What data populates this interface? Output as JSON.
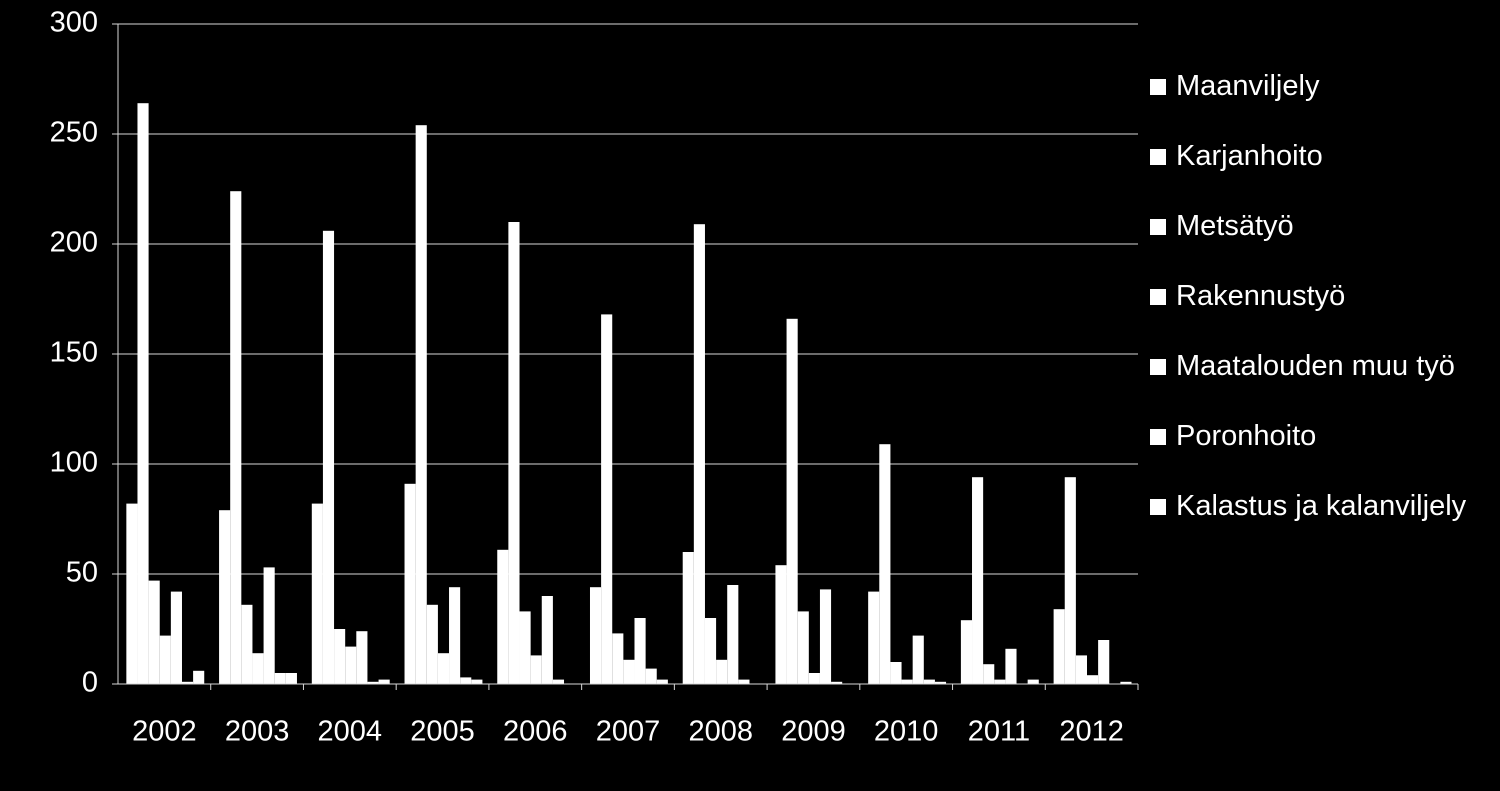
{
  "chart_data": {
    "type": "bar",
    "categories": [
      "2002",
      "2003",
      "2004",
      "2005",
      "2006",
      "2007",
      "2008",
      "2009",
      "2010",
      "2011",
      "2012"
    ],
    "series": [
      {
        "name": "Maanviljely",
        "color": "#ffffff",
        "values": [
          82,
          79,
          82,
          91,
          61,
          44,
          60,
          54,
          42,
          29,
          34
        ]
      },
      {
        "name": "Karjanhoito",
        "color": "#ffffff",
        "values": [
          264,
          224,
          206,
          254,
          210,
          168,
          209,
          166,
          109,
          94,
          94
        ]
      },
      {
        "name": "Metsätyö",
        "color": "#ffffff",
        "values": [
          47,
          36,
          25,
          36,
          33,
          23,
          30,
          33,
          10,
          9,
          13
        ]
      },
      {
        "name": "Rakennustyö",
        "color": "#ffffff",
        "values": [
          22,
          14,
          17,
          14,
          13,
          11,
          11,
          5,
          2,
          2,
          4
        ]
      },
      {
        "name": "Maatalouden muu työ",
        "color": "#ffffff",
        "values": [
          42,
          53,
          24,
          44,
          40,
          30,
          45,
          43,
          22,
          16,
          20
        ]
      },
      {
        "name": "Poronhoito",
        "color": "#ffffff",
        "values": [
          1,
          5,
          1,
          3,
          2,
          7,
          2,
          1,
          2,
          0,
          0
        ]
      },
      {
        "name": "Kalastus ja kalanviljely",
        "color": "#ffffff",
        "values": [
          6,
          5,
          2,
          2,
          0,
          2,
          0,
          0,
          1,
          2,
          1
        ]
      }
    ],
    "ylim": [
      0,
      300
    ],
    "yticks": [
      0,
      50,
      100,
      150,
      200,
      250,
      300
    ],
    "grid": true,
    "legend": "right"
  }
}
